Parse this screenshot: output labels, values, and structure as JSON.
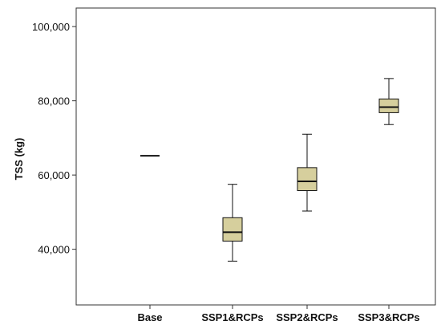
{
  "chart_data": {
    "type": "box",
    "title": "",
    "xlabel": "",
    "ylabel": "TSS (kg)",
    "ylim": [
      25000,
      105000
    ],
    "yticks": [
      40000,
      60000,
      80000,
      100000
    ],
    "ytick_labels": [
      "40,000",
      "60,000",
      "80,000",
      "100,000"
    ],
    "grid": false,
    "box_color": "#d6cf9d",
    "categories": [
      "Base",
      "SSP1&RCPs",
      "SSP2&RCPs",
      "SSP3&RCPs"
    ],
    "boxes": [
      {
        "category": "Base",
        "min": 65200,
        "q1": 65200,
        "median": 65200,
        "q3": 65200,
        "max": 65200
      },
      {
        "category": "SSP1&RCPs",
        "min": 36800,
        "q1": 42200,
        "median": 44600,
        "q3": 48500,
        "max": 57500
      },
      {
        "category": "SSP2&RCPs",
        "min": 50300,
        "q1": 55800,
        "median": 58300,
        "q3": 62000,
        "max": 71000
      },
      {
        "category": "SSP3&RCPs",
        "min": 73600,
        "q1": 76800,
        "median": 78300,
        "q3": 80500,
        "max": 86000
      }
    ]
  }
}
